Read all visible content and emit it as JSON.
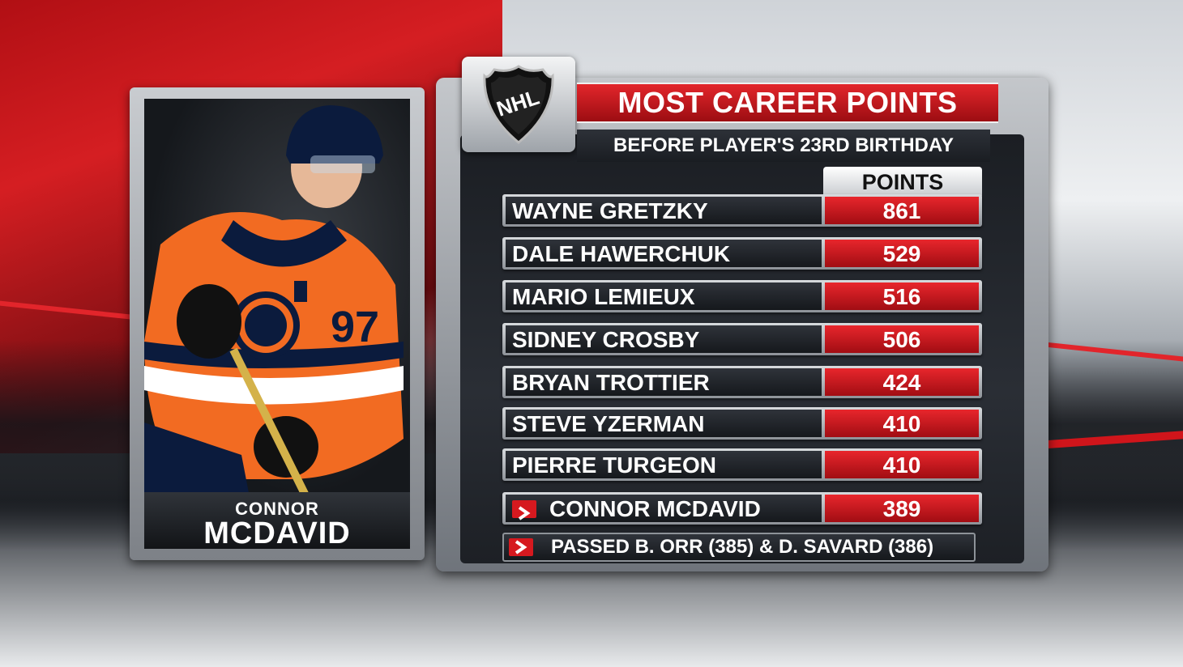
{
  "graphic": {
    "title": "MOST CAREER POINTS",
    "subtitle": "BEFORE PLAYER'S 23RD BIRTHDAY",
    "column_header": "POINTS",
    "league_logo": "nhl-shield-logo",
    "logo_text": "NHL"
  },
  "player": {
    "first_name": "CONNOR",
    "last_name": "MCDAVID",
    "jersey_number": "97",
    "captain_mark": "C"
  },
  "rankings": [
    {
      "name": "WAYNE GRETZKY",
      "points": "861",
      "highlight": false
    },
    {
      "name": "DALE HAWERCHUK",
      "points": "529",
      "highlight": false
    },
    {
      "name": "MARIO LEMIEUX",
      "points": "516",
      "highlight": false
    },
    {
      "name": "SIDNEY CROSBY",
      "points": "506",
      "highlight": false
    },
    {
      "name": "BRYAN TROTTIER",
      "points": "424",
      "highlight": false
    },
    {
      "name": "STEVE YZERMAN",
      "points": "410",
      "highlight": false
    },
    {
      "name": "PIERRE TURGEON",
      "points": "410",
      "highlight": false
    },
    {
      "name": "CONNOR MCDAVID",
      "points": "389",
      "highlight": true
    }
  ],
  "note": "PASSED B. ORR (385) & D. SAVARD (386)",
  "colors": {
    "accent_red": "#d6191f",
    "jersey_orange": "#f26b22",
    "jersey_navy": "#0b1b3d"
  }
}
